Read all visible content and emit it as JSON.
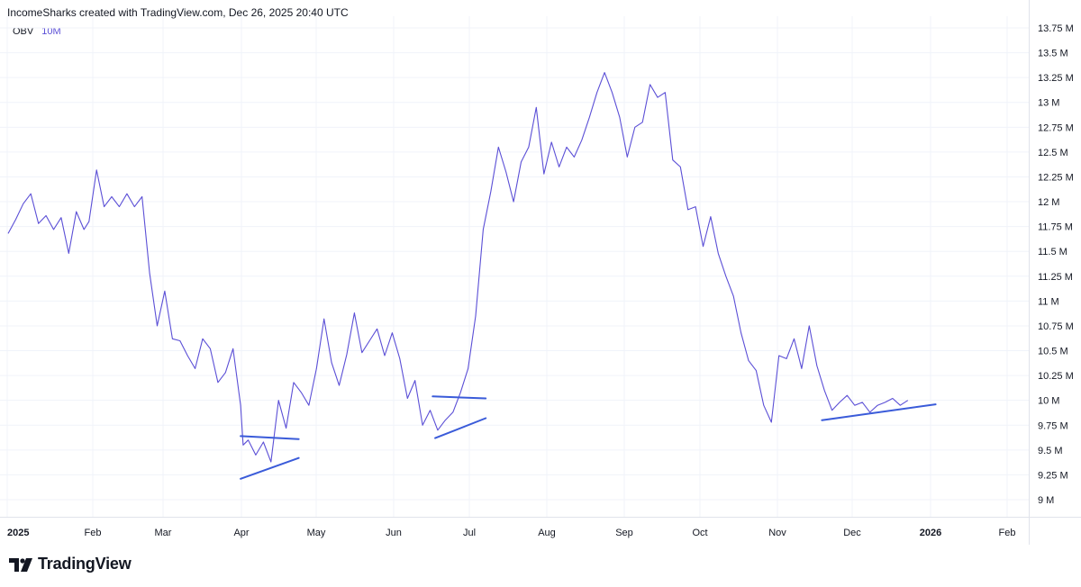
{
  "header": {
    "attribution": "IncomeSharks created with TradingView.com, Dec 26, 2025 20:40 UTC"
  },
  "indicator": {
    "name": "OBV",
    "value": "10M",
    "line_color": "#5b4fd6"
  },
  "trendline_color": "#3a5bd9",
  "logo": {
    "text": "TradingView",
    "icon": "tradingview-logo-icon"
  },
  "chart_data": {
    "type": "line",
    "x_axis": {
      "labels": [
        "2025",
        "Feb",
        "Mar",
        "Apr",
        "May",
        "Jun",
        "Jul",
        "Aug",
        "Sep",
        "Oct",
        "Nov",
        "Dec",
        "2026",
        "Feb"
      ],
      "bold_labels": [
        "2025",
        "2026"
      ]
    },
    "y_axis": {
      "position": "right",
      "unit": "M",
      "ticks": [
        {
          "value": 13.75,
          "label": "13.75 M"
        },
        {
          "value": 13.5,
          "label": "13.5 M"
        },
        {
          "value": 13.25,
          "label": "13.25 M"
        },
        {
          "value": 13,
          "label": "13 M"
        },
        {
          "value": 12.75,
          "label": "12.75 M"
        },
        {
          "value": 12.5,
          "label": "12.5 M"
        },
        {
          "value": 12.25,
          "label": "12.25 M"
        },
        {
          "value": 12,
          "label": "12 M"
        },
        {
          "value": 11.75,
          "label": "11.75 M"
        },
        {
          "value": 11.5,
          "label": "11.5 M"
        },
        {
          "value": 11.25,
          "label": "11.25 M"
        },
        {
          "value": 11,
          "label": "11 M"
        },
        {
          "value": 10.75,
          "label": "10.75 M"
        },
        {
          "value": 10.5,
          "label": "10.5 M"
        },
        {
          "value": 10.25,
          "label": "10.25 M"
        },
        {
          "value": 10,
          "label": "10 M"
        },
        {
          "value": 9.75,
          "label": "9.75 M"
        },
        {
          "value": 9.5,
          "label": "9.5 M"
        },
        {
          "value": 9.25,
          "label": "9.25 M"
        },
        {
          "value": 9,
          "label": "9 M"
        }
      ],
      "range": [
        8.95,
        13.85
      ]
    },
    "grid": true,
    "series": [
      {
        "x": [
          "2025-01-01",
          "2025-01-04",
          "2025-01-07",
          "2025-01-10",
          "2025-01-13",
          "2025-01-16",
          "2025-01-19",
          "2025-01-22",
          "2025-01-25",
          "2025-01-28",
          "2025-01-31",
          "2025-02-02",
          "2025-02-05",
          "2025-02-08",
          "2025-02-11",
          "2025-02-14",
          "2025-02-17",
          "2025-02-20",
          "2025-02-23",
          "2025-02-26",
          "2025-03-01",
          "2025-03-04",
          "2025-03-07",
          "2025-03-10",
          "2025-03-13",
          "2025-03-16",
          "2025-03-19",
          "2025-03-22",
          "2025-03-25",
          "2025-03-28",
          "2025-03-31",
          "2025-04-03",
          "2025-04-04",
          "2025-04-06",
          "2025-04-09",
          "2025-04-12",
          "2025-04-15",
          "2025-04-18",
          "2025-04-21",
          "2025-04-24",
          "2025-04-27",
          "2025-04-30",
          "2025-05-03",
          "2025-05-06",
          "2025-05-09",
          "2025-05-12",
          "2025-05-15",
          "2025-05-18",
          "2025-05-21",
          "2025-05-24",
          "2025-05-27",
          "2025-05-30",
          "2025-06-02",
          "2025-06-05",
          "2025-06-08",
          "2025-06-11",
          "2025-06-14",
          "2025-06-17",
          "2025-06-20",
          "2025-06-23",
          "2025-06-26",
          "2025-06-29",
          "2025-07-02",
          "2025-07-05",
          "2025-07-08",
          "2025-07-11",
          "2025-07-14",
          "2025-07-17",
          "2025-07-20",
          "2025-07-23",
          "2025-07-26",
          "2025-07-29",
          "2025-08-01",
          "2025-08-04",
          "2025-08-07",
          "2025-08-10",
          "2025-08-13",
          "2025-08-16",
          "2025-08-19",
          "2025-08-22",
          "2025-08-25",
          "2025-08-28",
          "2025-08-31",
          "2025-09-03",
          "2025-09-06",
          "2025-09-09",
          "2025-09-12",
          "2025-09-15",
          "2025-09-18",
          "2025-09-21",
          "2025-09-24",
          "2025-09-27",
          "2025-09-30",
          "2025-10-03",
          "2025-10-06",
          "2025-10-09",
          "2025-10-12",
          "2025-10-15",
          "2025-10-18",
          "2025-10-21",
          "2025-10-24",
          "2025-10-27",
          "2025-10-30",
          "2025-11-02",
          "2025-11-05",
          "2025-11-08",
          "2025-11-11",
          "2025-11-14",
          "2025-11-17",
          "2025-11-20",
          "2025-11-23",
          "2025-11-26",
          "2025-11-29",
          "2025-12-02",
          "2025-12-05",
          "2025-12-08",
          "2025-12-11",
          "2025-12-14",
          "2025-12-17",
          "2025-12-20",
          "2025-12-23"
        ],
        "y": [
          11.68,
          11.82,
          11.98,
          12.08,
          11.78,
          11.86,
          11.72,
          11.84,
          11.48,
          11.9,
          11.72,
          11.8,
          12.32,
          11.95,
          12.05,
          11.95,
          12.08,
          11.95,
          12.05,
          11.28,
          10.75,
          11.1,
          10.62,
          10.6,
          10.45,
          10.32,
          10.62,
          10.52,
          10.18,
          10.28,
          10.52,
          9.95,
          9.55,
          9.6,
          9.45,
          9.58,
          9.38,
          10.0,
          9.72,
          10.18,
          10.08,
          9.95,
          10.32,
          10.82,
          10.38,
          10.15,
          10.46,
          10.88,
          10.48,
          10.6,
          10.72,
          10.45,
          10.68,
          10.42,
          10.02,
          10.2,
          9.75,
          9.9,
          9.7,
          9.8,
          9.88,
          10.08,
          10.32,
          10.85,
          11.72,
          12.1,
          12.55,
          12.3,
          12.0,
          12.4,
          12.55,
          12.95,
          12.28,
          12.6,
          12.35,
          12.55,
          12.45,
          12.62,
          12.85,
          13.1,
          13.3,
          13.1,
          12.85,
          12.45,
          12.75,
          12.8,
          13.18,
          13.05,
          13.1,
          12.42,
          12.35,
          11.92,
          11.95,
          11.55,
          11.85,
          11.48,
          11.25,
          11.05,
          10.68,
          10.4,
          10.3,
          9.95,
          9.78,
          10.45,
          10.42,
          10.62,
          10.32,
          10.75,
          10.35,
          10.1,
          9.9,
          9.98,
          10.05,
          9.95,
          9.98,
          9.88,
          9.95,
          9.98,
          10.02,
          9.95,
          10.0
        ]
      }
    ],
    "trendlines": [
      {
        "x": [
          "2025-04-03",
          "2025-04-26"
        ],
        "y": [
          9.64,
          9.61
        ]
      },
      {
        "x": [
          "2025-04-03",
          "2025-04-26"
        ],
        "y": [
          9.21,
          9.42
        ]
      },
      {
        "x": [
          "2025-06-18",
          "2025-07-09"
        ],
        "y": [
          10.04,
          10.02
        ]
      },
      {
        "x": [
          "2025-06-19",
          "2025-07-09"
        ],
        "y": [
          9.62,
          9.82
        ]
      },
      {
        "x": [
          "2025-11-19",
          "2026-01-03"
        ],
        "y": [
          9.8,
          9.96
        ]
      }
    ]
  }
}
